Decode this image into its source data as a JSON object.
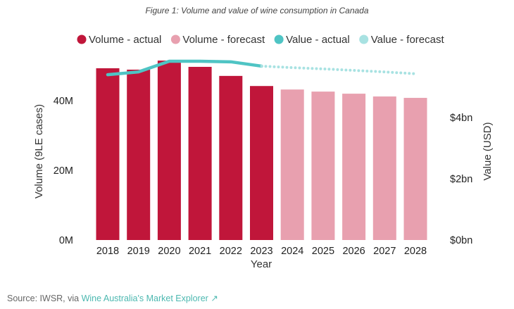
{
  "caption": "Figure 1: Volume and value of wine consumption in Canada",
  "source": {
    "prefix": "Source: IWSR, via ",
    "link": "Wine Australia's Market Explorer",
    "link_icon": "external-link-icon"
  },
  "chart_data": {
    "type": "bar",
    "title": "Figure 1: Volume and value of wine consumption in Canada",
    "categories": [
      "2018",
      "2019",
      "2020",
      "2021",
      "2022",
      "2023",
      "2024",
      "2025",
      "2026",
      "2027",
      "2028"
    ],
    "xlabel": "Year",
    "ylabel": "Volume (9LE cases)",
    "y2label": "Value (USD)",
    "ylim": [
      0,
      54
    ],
    "y2lim": [
      0,
      6.2
    ],
    "yticks": [
      {
        "v": 0,
        "label": "0M"
      },
      {
        "v": 20,
        "label": "20M"
      },
      {
        "v": 40,
        "label": "40M"
      }
    ],
    "y2ticks": [
      {
        "v": 0,
        "label": "$0bn"
      },
      {
        "v": 2,
        "label": "$2bn"
      },
      {
        "v": 4,
        "label": "$4bn"
      }
    ],
    "legend_position": "top",
    "grid": false,
    "series": [
      {
        "name": "Volume - actual",
        "type": "bar",
        "color": "#c0163a",
        "values": [
          49.3,
          48.9,
          51.5,
          49.7,
          47.1,
          44.2,
          null,
          null,
          null,
          null,
          null
        ]
      },
      {
        "name": "Volume - forecast",
        "type": "bar",
        "color": "#e8a0af",
        "values": [
          null,
          null,
          null,
          null,
          null,
          null,
          43.2,
          42.6,
          42.0,
          41.2,
          40.8
        ]
      },
      {
        "name": "Value - actual",
        "type": "line",
        "axis": "right",
        "color": "#4fc4c4",
        "values": [
          5.4,
          5.49,
          5.84,
          5.84,
          5.82,
          5.68,
          null,
          null,
          null,
          null,
          null
        ]
      },
      {
        "name": "Value - forecast",
        "type": "line",
        "axis": "right",
        "style": "dotted",
        "color": "#a8e2e2",
        "values": [
          null,
          null,
          null,
          null,
          null,
          5.68,
          5.63,
          5.59,
          5.54,
          5.49,
          5.43
        ]
      }
    ]
  }
}
